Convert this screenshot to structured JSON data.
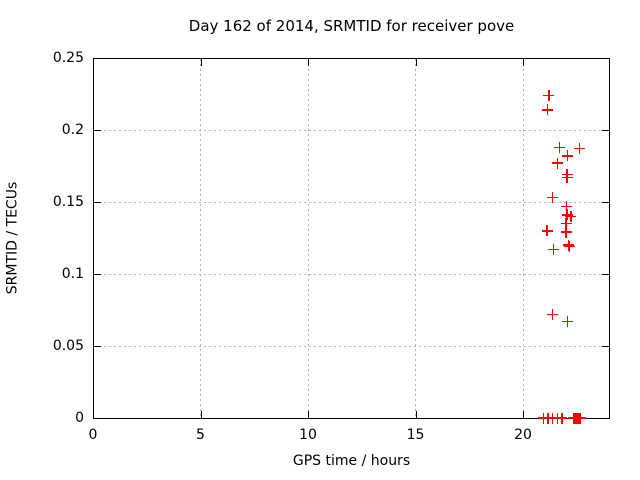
{
  "chart_data": {
    "type": "scatter",
    "title": "Day 162 of 2014, SRMTID for receiver pove",
    "xlabel": "GPS time / hours",
    "ylabel": "SRMTID / TECUs",
    "xlim": [
      0,
      24
    ],
    "ylim": [
      0,
      0.25
    ],
    "xtick_values": [
      0,
      5,
      10,
      15,
      20
    ],
    "xtick_labels": [
      "0",
      "5",
      "10",
      "15",
      "20"
    ],
    "ytick_values": [
      0,
      0.05,
      0.1,
      0.15,
      0.2,
      0.25
    ],
    "ytick_labels": [
      "0",
      "0.05",
      "0.1",
      "0.15",
      "0.2",
      "0.25"
    ],
    "grid": "dotted",
    "legend": false,
    "marker": "plus",
    "marker_color": "#ff0000",
    "series": [
      {
        "name": "SRMTID",
        "color": "#ff0000",
        "points": [
          [
            21.2,
            0.224
          ],
          [
            21.15,
            0.214
          ],
          [
            21.69,
            0.188
          ],
          [
            22.62,
            0.187
          ],
          [
            22.08,
            0.182
          ],
          [
            21.6,
            0.177
          ],
          [
            22.05,
            0.169
          ],
          [
            22.05,
            0.167
          ],
          [
            21.38,
            0.153
          ],
          [
            22.03,
            0.147
          ],
          [
            22.05,
            0.141
          ],
          [
            22.23,
            0.14
          ],
          [
            22.01,
            0.135
          ],
          [
            21.12,
            0.13
          ],
          [
            22.01,
            0.129
          ],
          [
            22.12,
            0.12
          ],
          [
            22.16,
            0.119
          ],
          [
            21.43,
            0.117
          ],
          [
            21.38,
            0.072
          ],
          [
            22.08,
            0.067
          ],
          [
            20.95,
            0
          ],
          [
            21.17,
            0
          ],
          [
            21.38,
            0
          ],
          [
            21.6,
            0
          ],
          [
            21.81,
            0
          ],
          [
            22.37,
            0
          ],
          [
            22.42,
            0
          ],
          [
            22.47,
            0
          ],
          [
            22.52,
            0
          ],
          [
            22.57,
            0
          ],
          [
            22.62,
            0
          ],
          [
            22.67,
            0
          ]
        ]
      }
    ]
  },
  "colors": {
    "background": "#ffffff",
    "border": "#000000",
    "grid": "#b4b4b4",
    "marker": "#ff0000",
    "text": "#000000"
  }
}
